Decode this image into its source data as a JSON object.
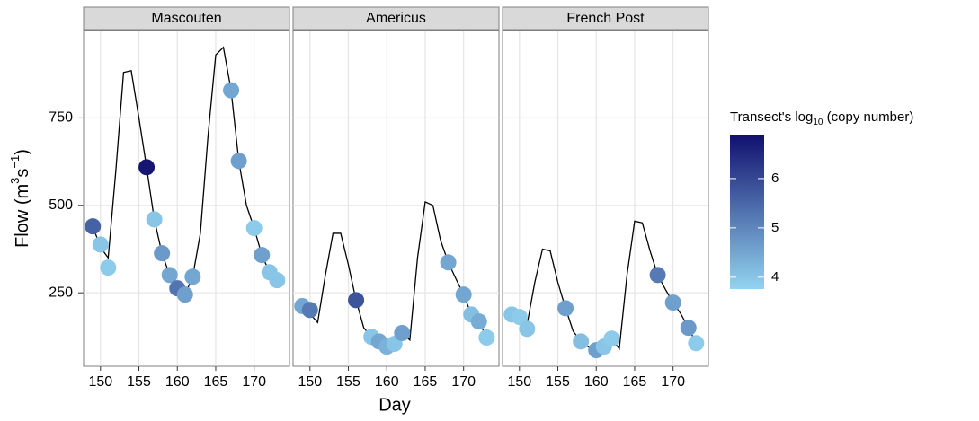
{
  "chart_data": {
    "type": "facet",
    "x_label": "Day",
    "y_label_parts": [
      "Flow  (m",
      "3",
      "s",
      "−1",
      ")"
    ],
    "xlim": [
      147.8,
      174.6
    ],
    "xticks": [
      150,
      155,
      160,
      165,
      170
    ],
    "ylim": [
      40,
      1000
    ],
    "yticks": [
      250,
      500,
      750
    ],
    "grid": true,
    "line_color": "#000000",
    "colorbar": {
      "title_parts": [
        "Transect's log",
        "10",
        " (copy number)"
      ],
      "lim": [
        3.76,
        6.89
      ],
      "ticks": [
        4,
        5,
        6
      ],
      "low": "#92d4f0",
      "high": "#10106e"
    },
    "panels": [
      {
        "type": "line",
        "title": "Mascouten",
        "x": [
          149,
          150,
          151,
          152,
          153,
          154,
          155,
          156,
          157,
          158,
          159,
          160,
          161,
          162,
          163,
          164,
          165,
          166,
          167,
          168,
          169,
          170,
          171,
          172,
          173
        ],
        "values": [
          440,
          380,
          350,
          600,
          880,
          885,
          750,
          609,
          460,
          363,
          301,
          263,
          245,
          296,
          420,
          700,
          930,
          952,
          829,
          627,
          500,
          435,
          358,
          309,
          286
        ],
        "points": {
          "x": [
            149,
            150,
            151,
            156,
            157,
            158,
            159,
            160,
            161,
            162,
            167,
            168,
            170,
            171,
            172,
            173
          ],
          "values": [
            440,
            388,
            322,
            609,
            460,
            363,
            301,
            263,
            245,
            296,
            829,
            627,
            435,
            358,
            309,
            286
          ],
          "colors": [
            5.6,
            4.0,
            3.9,
            6.8,
            4.0,
            4.7,
            4.5,
            5.3,
            4.6,
            4.5,
            4.5,
            4.6,
            3.9,
            4.6,
            4.0,
            4.0
          ]
        }
      },
      {
        "type": "line",
        "title": "Americus",
        "x": [
          149,
          150,
          151,
          152,
          153,
          154,
          155,
          156,
          157,
          158,
          159,
          160,
          161,
          162,
          163,
          164,
          165,
          166,
          167,
          168,
          169,
          170,
          171,
          172,
          173
        ],
        "values": [
          212,
          190,
          165,
          300,
          420,
          420,
          330,
          229,
          150,
          124,
          111,
          96,
          104,
          135,
          115,
          350,
          510,
          500,
          400,
          337,
          290,
          245,
          188,
          168,
          122
        ],
        "points": {
          "x": [
            149,
            150,
            156,
            158,
            159,
            160,
            161,
            162,
            168,
            170,
            171,
            172,
            173
          ],
          "values": [
            212,
            201,
            229,
            124,
            111,
            96,
            104,
            135,
            337,
            245,
            188,
            168,
            122
          ],
          "colors": [
            4.5,
            5.2,
            5.8,
            4.0,
            4.5,
            4.3,
            4.0,
            4.6,
            4.5,
            4.5,
            4.1,
            4.4,
            3.9
          ]
        }
      },
      {
        "type": "line",
        "title": "French Post",
        "x": [
          149,
          150,
          151,
          152,
          153,
          154,
          155,
          156,
          157,
          158,
          159,
          160,
          161,
          162,
          163,
          164,
          165,
          166,
          167,
          168,
          169,
          170,
          171,
          172,
          173
        ],
        "values": [
          188,
          181,
          160,
          280,
          375,
          370,
          280,
          206,
          140,
          111,
          95,
          86,
          96,
          119,
          90,
          300,
          455,
          450,
          370,
          301,
          260,
          222,
          190,
          150,
          106
        ],
        "points": {
          "x": [
            149,
            150,
            151,
            156,
            158,
            160,
            161,
            162,
            168,
            170,
            172,
            173
          ],
          "values": [
            188,
            181,
            147,
            206,
            111,
            86,
            96,
            119,
            301,
            222,
            150,
            106
          ],
          "colors": [
            4.0,
            3.9,
            4.0,
            4.6,
            4.1,
            4.6,
            4.0,
            3.9,
            5.2,
            4.6,
            4.7,
            3.9
          ]
        }
      }
    ]
  }
}
